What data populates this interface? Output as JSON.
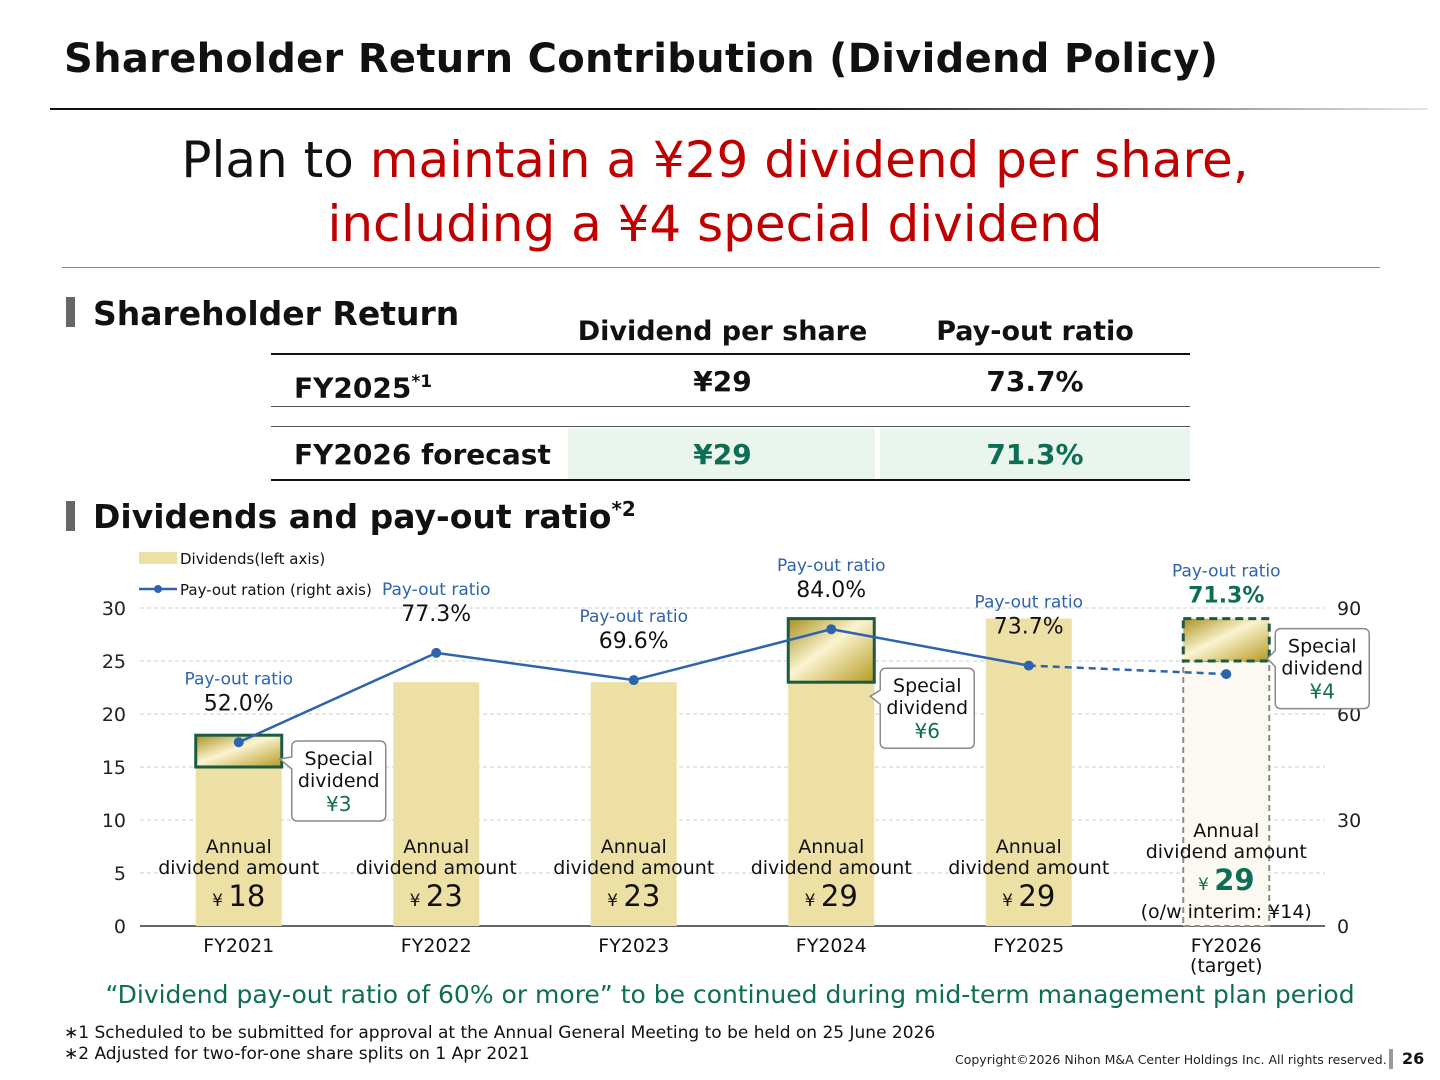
{
  "slide": {
    "title": "Shareholder Return Contribution (Dividend Policy)",
    "headline": {
      "prefix": "Plan to ",
      "highlight_line1": "maintain a ¥29 dividend per share,",
      "highlight_line2": "including a ¥4 special dividend"
    },
    "page_number": "26",
    "copyright": "Copyright©2026 Nihon M&A Center Holdings Inc. All rights reserved."
  },
  "section_return": {
    "title": "Shareholder Return",
    "columns": [
      "Dividend per share",
      "Pay-out ratio"
    ],
    "rows": [
      {
        "label": "FY2025",
        "label_sup": "*1",
        "dividend": "¥29",
        "payout": "73.7%"
      },
      {
        "label": "FY2026  forecast",
        "label_sup": "",
        "dividend": "¥29",
        "payout": "71.3%"
      }
    ]
  },
  "section_chart": {
    "title": "Dividends and pay-out ratio",
    "title_sup": "*2"
  },
  "chart_data": {
    "type": "bar",
    "categories": [
      "FY2021",
      "FY2022",
      "FY2023",
      "FY2024",
      "FY2025",
      "FY2026\n(target)"
    ],
    "legend": {
      "bars": "Dividends(left axis)",
      "line": "Pay-out ration (right axis)"
    },
    "left_axis": {
      "ylim": [
        0,
        30
      ],
      "ticks": [
        0,
        5,
        10,
        15,
        20,
        25,
        30
      ]
    },
    "right_axis": {
      "ylim": [
        0,
        90
      ],
      "ticks": [
        0,
        30,
        60,
        90
      ]
    },
    "series": [
      {
        "name": "Dividends(left axis)",
        "axis": "left",
        "values": [
          18,
          23,
          23,
          29,
          29,
          29
        ]
      },
      {
        "name": "Pay-out ration (right axis)",
        "axis": "right",
        "values": [
          52.0,
          77.3,
          69.6,
          84.0,
          73.7,
          71.3
        ],
        "projected_last": true
      }
    ],
    "special_dividends": [
      3,
      0,
      0,
      6,
      0,
      4
    ],
    "payout_label_title": "Pay-out ratio",
    "payout_labels": [
      "52.0%",
      "77.3%",
      "69.6%",
      "84.0%",
      "73.7%",
      "71.3%"
    ],
    "annual_label_line1": "Annual",
    "annual_label_line2": "dividend amount",
    "yen": "¥",
    "annual_values": [
      "18",
      "23",
      "23",
      "29",
      "29",
      "29"
    ],
    "interim_note": "(o/w interim: ¥14)",
    "callouts": [
      {
        "index": 0,
        "line1": "Special",
        "line2": "dividend",
        "amount": "¥3"
      },
      {
        "index": 3,
        "line1": "Special",
        "line2": "dividend",
        "amount": "¥6"
      },
      {
        "index": 5,
        "line1": "Special",
        "line2": "dividend",
        "amount": "¥4"
      }
    ],
    "colors": {
      "bar": "#ede0a4",
      "line": "#2e63ad",
      "special_border": "#1c5a43",
      "callout_text": "#0e6e55"
    }
  },
  "footer": {
    "quote": "“Dividend pay-out ratio of 60% or more” to be continued during mid-term management plan period",
    "note1": "∗1  Scheduled to be submitted for approval at the Annual General Meeting to be held on 25 June 2026",
    "note2": "∗2  Adjusted for two-for-one share splits on 1 Apr 2021"
  }
}
